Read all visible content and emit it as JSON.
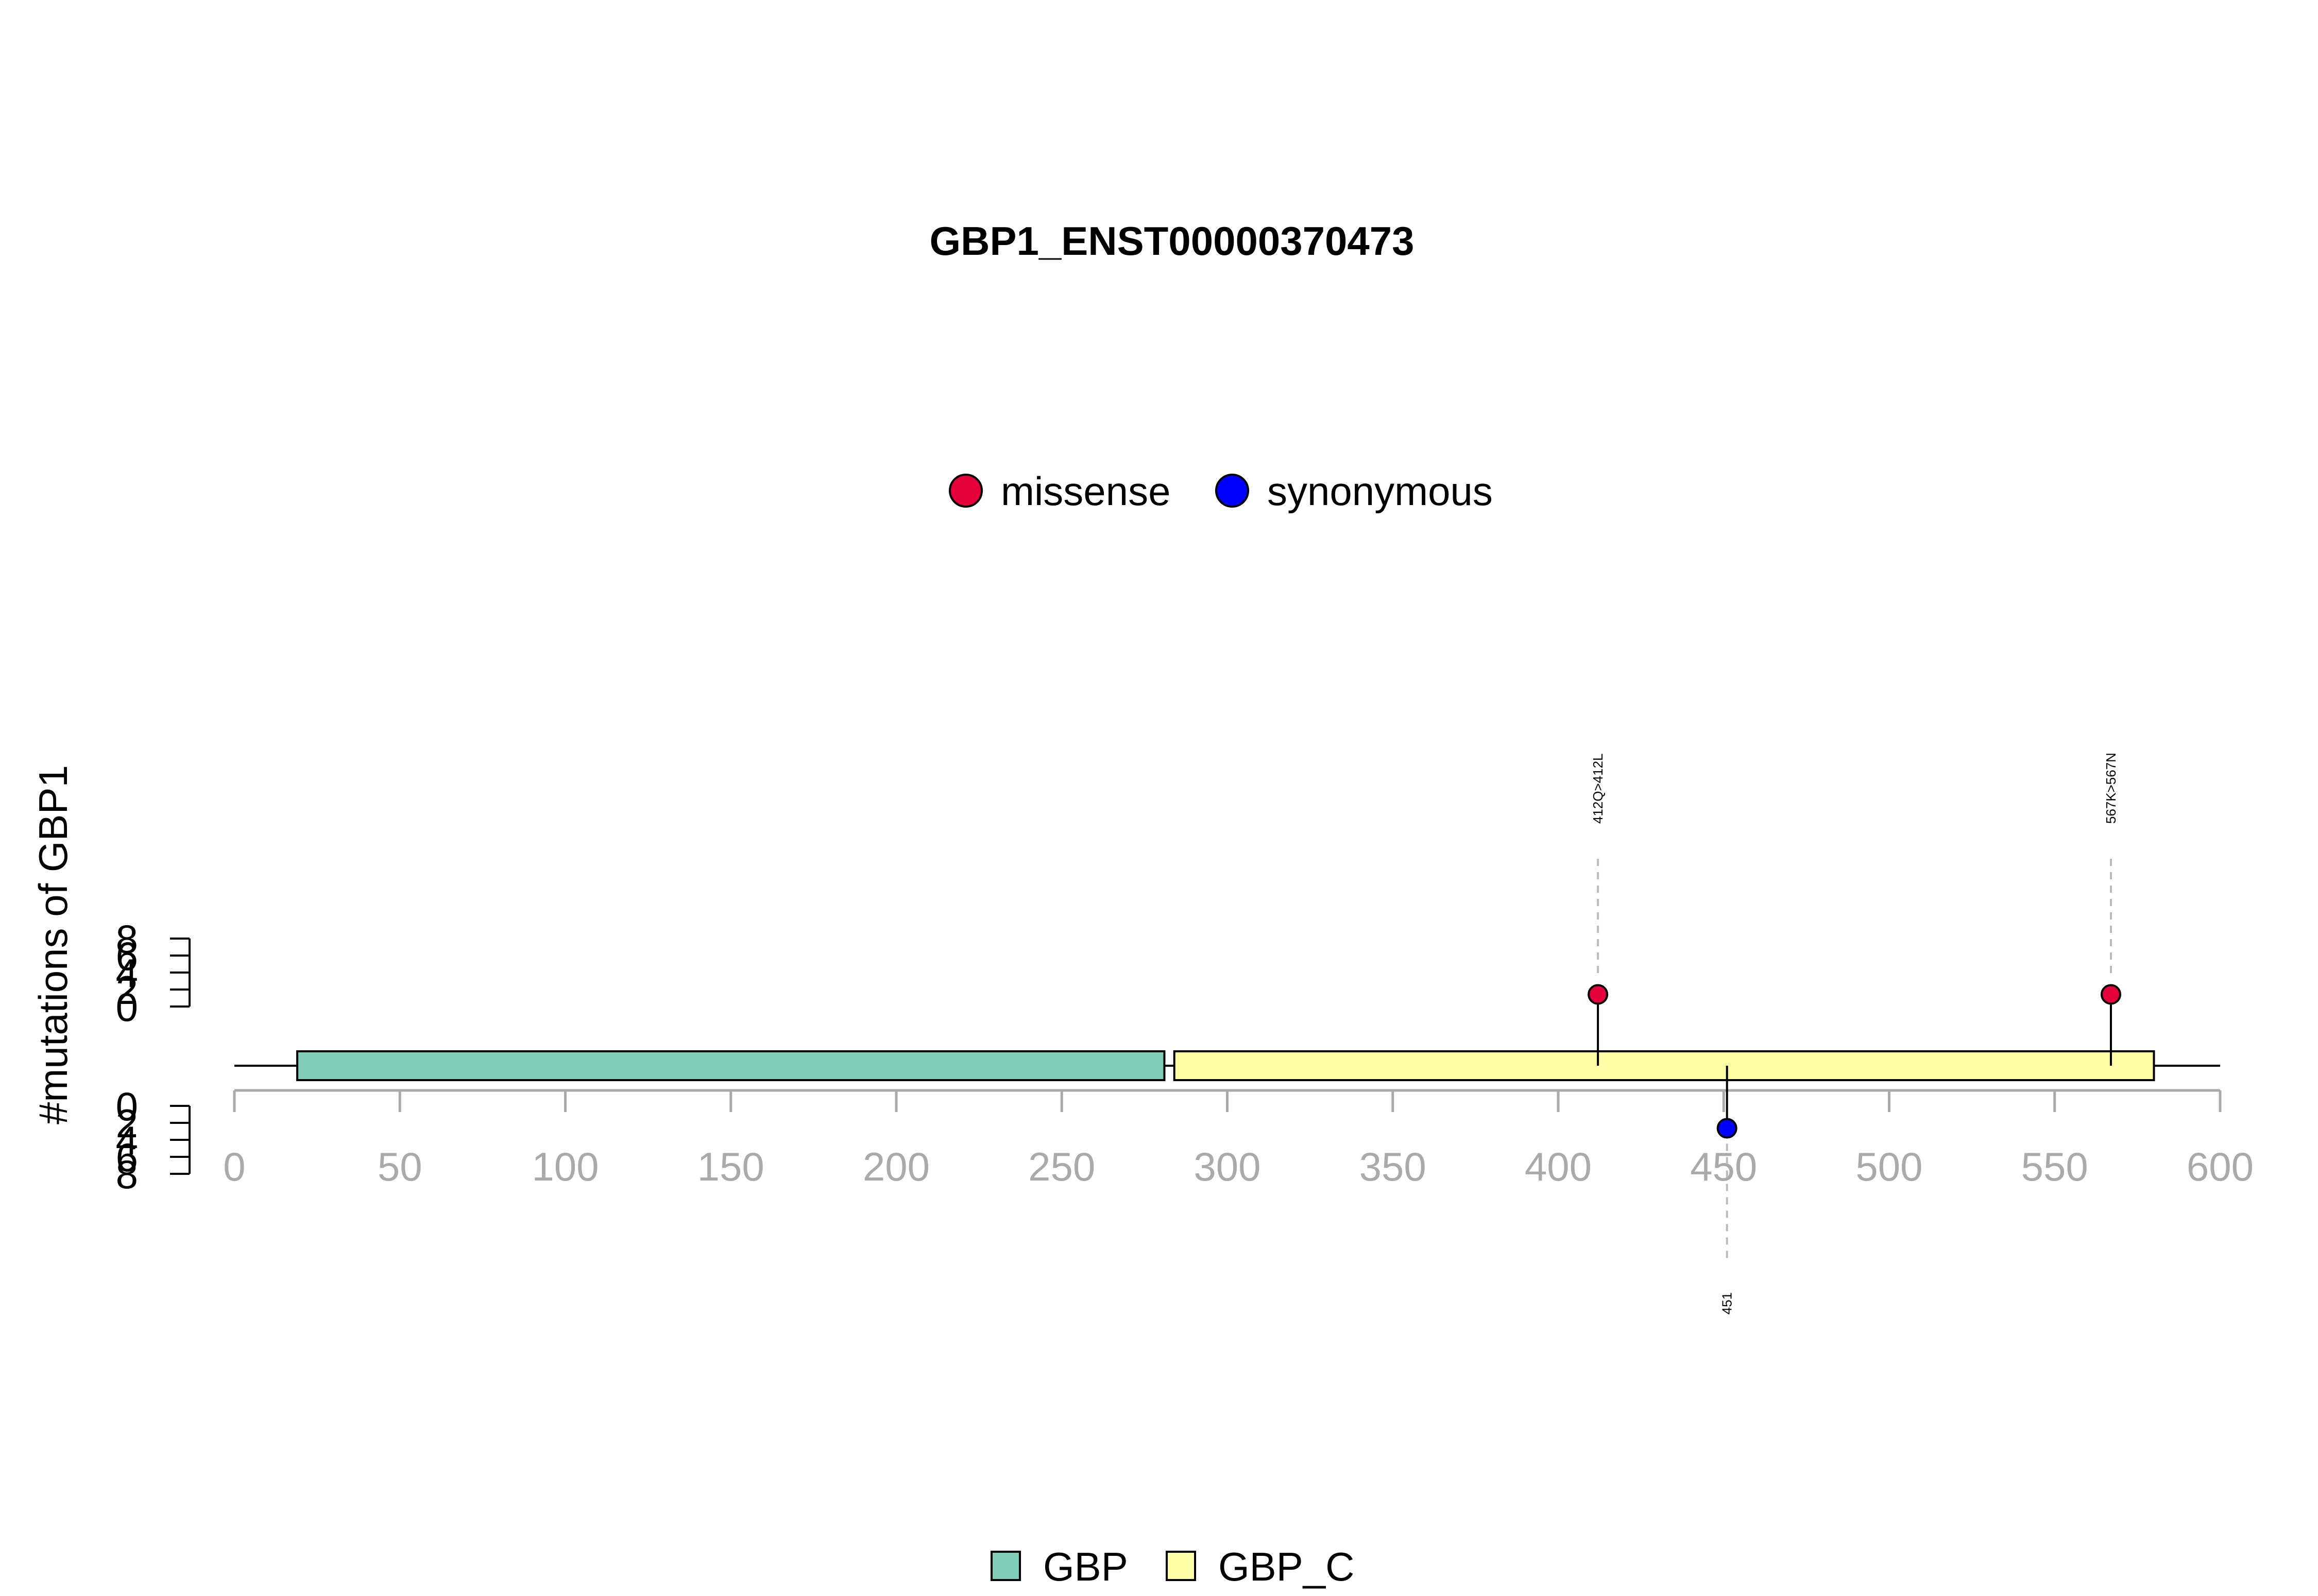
{
  "chart_data": {
    "type": "lollipop",
    "title": "GBP1_ENST00000370473",
    "ylabel": "#mutations of GBP1",
    "xlim": [
      0,
      600
    ],
    "x_ticks": [
      "0",
      "50",
      "100",
      "150",
      "200",
      "250",
      "300",
      "350",
      "400",
      "450",
      "500",
      "550",
      "600"
    ],
    "y_ticks_top": [
      "8",
      "6",
      "4",
      "2",
      "0"
    ],
    "y_ticks_bottom": [
      "0",
      "2",
      "4",
      "6",
      "8"
    ],
    "ylim": [
      0,
      8
    ],
    "protein_length": 600,
    "colors": {
      "missense": "#e4003a",
      "synonymous": "#0000ff",
      "GBP": "#7fcdbb",
      "GBP_C": "#ffffa8",
      "axis": "#aaaaaa",
      "guide": "#bbbbbb"
    },
    "mutation_legend": [
      {
        "name": "missense",
        "color": "#e4003a"
      },
      {
        "name": "synonymous",
        "color": "#0000ff"
      }
    ],
    "domain_legend": [
      {
        "name": "GBP",
        "color": "#7fcdbb"
      },
      {
        "name": "GBP_C",
        "color": "#ffffa8"
      }
    ],
    "domains": [
      {
        "name": "GBP",
        "start": 19,
        "end": 281
      },
      {
        "name": "GBP_C",
        "start": 284,
        "end": 580
      }
    ],
    "mutations": [
      {
        "position": 412,
        "count": 1,
        "type": "missense",
        "label": "412Q>412L",
        "side": "top"
      },
      {
        "position": 567,
        "count": 1,
        "type": "missense",
        "label": "567K>567N",
        "side": "top"
      },
      {
        "position": 451,
        "count": 1,
        "type": "synonymous",
        "label": "451",
        "side": "bottom"
      }
    ]
  }
}
